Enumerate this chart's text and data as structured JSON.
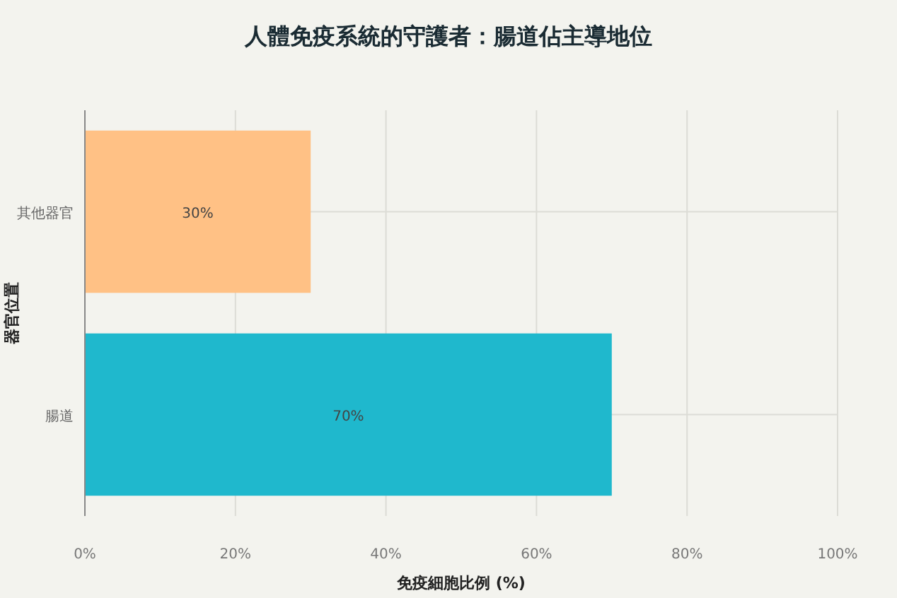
{
  "chart_data": {
    "type": "bar",
    "orientation": "horizontal",
    "title": "人體免疫系統的守護者：腸道佔主導地位",
    "xlabel": "免疫細胞比例 (%)",
    "ylabel": "器官位置",
    "categories": [
      "其他器官",
      "腸道"
    ],
    "values": [
      30,
      70
    ],
    "colors": [
      "#ffc185",
      "#1fb8cd"
    ],
    "value_labels": [
      "30%",
      "70%"
    ],
    "xlim": [
      0,
      100
    ],
    "xticks": [
      {
        "value": 0,
        "label": "0%"
      },
      {
        "value": 20,
        "label": "20%"
      },
      {
        "value": 40,
        "label": "40%"
      },
      {
        "value": 60,
        "label": "60%"
      },
      {
        "value": 80,
        "label": "80%"
      },
      {
        "value": 100,
        "label": "100%"
      }
    ],
    "grid": true
  }
}
